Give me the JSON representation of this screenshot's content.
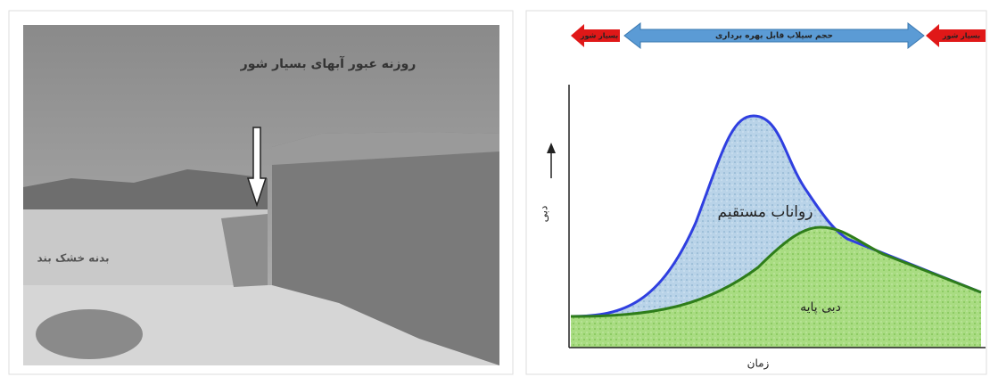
{
  "photo": {
    "labels": [
      "روزنه عبور آبهای بسیار شور",
      "بدنه خشک بند"
    ]
  },
  "diagram": {
    "top_arrows": [
      "بسیار شور",
      "حجم سیلاب قابل بهره برداری",
      "بسیار شور"
    ],
    "regions": [
      "رواناب مستقیم",
      "دبی پایه"
    ],
    "y_axis_label": "دبی",
    "x_axis_label": "زمان"
  }
}
